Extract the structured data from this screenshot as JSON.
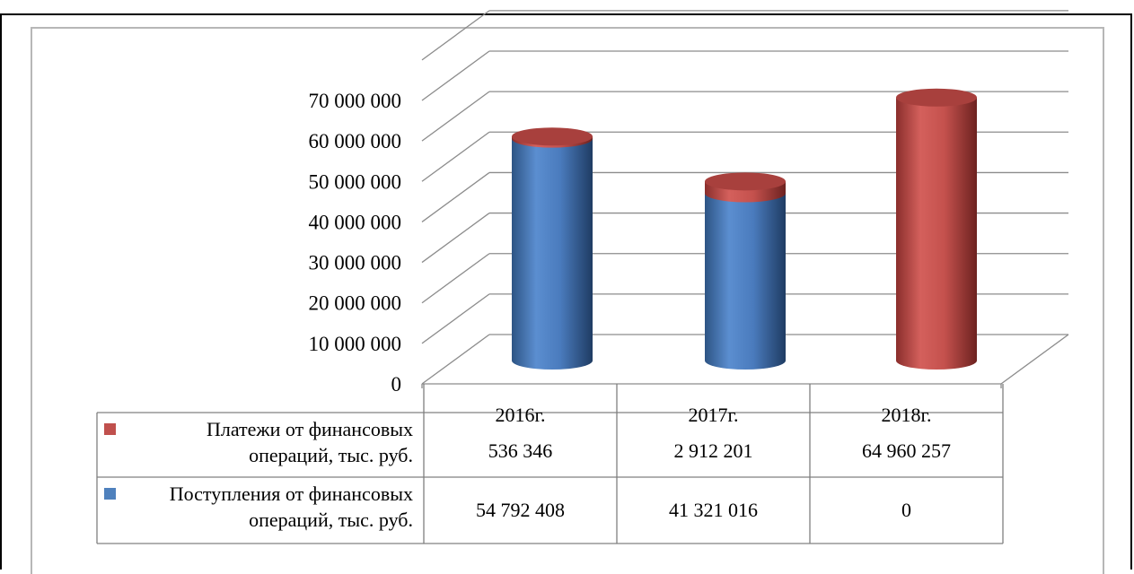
{
  "chart_data": {
    "type": "bar",
    "title": "",
    "categories": [
      "2016г.",
      "2017г.",
      "2018г."
    ],
    "series": [
      {
        "name": "Поступления от финансовых операций, тыс. руб.",
        "name_lines": [
          "Поступления от финансовых",
          "операций, тыс. руб."
        ],
        "values": [
          54792408,
          41321016,
          0
        ],
        "value_labels": [
          "54 792 408",
          "41 321 016",
          "0"
        ],
        "color": "#4f81bd"
      },
      {
        "name": "Платежи от финансовых операций, тыс. руб.",
        "name_lines": [
          "Платежи от финансовых",
          "операций, тыс. руб."
        ],
        "values": [
          536346,
          2912201,
          64960257
        ],
        "value_labels": [
          "536 346",
          "2 912 201",
          "64 960 257"
        ],
        "color": "#c0504d"
      }
    ],
    "stacked": true,
    "style": "3d-cylinder",
    "ylim": [
      0,
      80000000
    ],
    "yticks": [
      0,
      10000000,
      20000000,
      30000000,
      40000000,
      50000000,
      60000000,
      70000000
    ],
    "ytick_labels": [
      "0",
      "10 000 000",
      "20 000 000",
      "30 000 000",
      "40 000 000",
      "50 000 000",
      "60 000 000",
      "70 000 000"
    ],
    "grid": true,
    "legend": "data-table-below"
  }
}
